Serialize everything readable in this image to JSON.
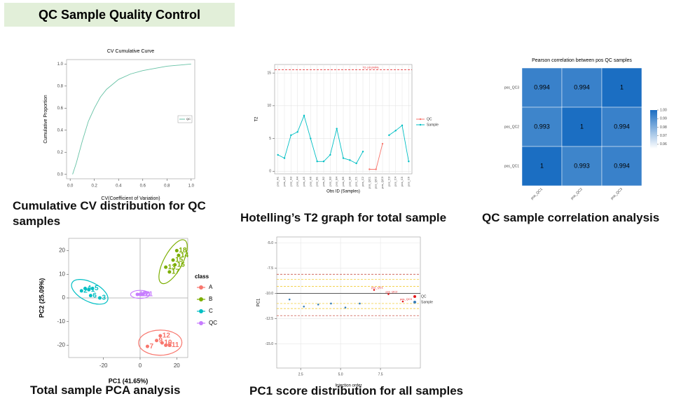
{
  "header": {
    "title": "QC Sample Quality Control"
  },
  "chart_data": [
    {
      "type": "line",
      "title": "CV Cumulative Curve",
      "caption": "Cumulative CV distribution for QC samples",
      "x_label": "CV(Coefficient of Variation)",
      "y_label": "Cumulative Proportion",
      "x": [
        0.02,
        0.05,
        0.1,
        0.15,
        0.2,
        0.25,
        0.3,
        0.4,
        0.5,
        0.6,
        0.7,
        0.8,
        0.9,
        1.0
      ],
      "series": [
        {
          "name": "QC",
          "color": "#66c2a5",
          "values": [
            0,
            0.1,
            0.3,
            0.48,
            0.6,
            0.7,
            0.77,
            0.86,
            0.91,
            0.94,
            0.96,
            0.98,
            0.99,
            1.0
          ]
        }
      ],
      "xlim": [
        -0.03,
        1.03
      ],
      "ylim": [
        -0.04,
        1.04
      ],
      "xticks": [
        {
          "value": 0,
          "label": "0.0"
        },
        0.2,
        0.4,
        0.6,
        0.8,
        {
          "value": 1,
          "label": "1.0"
        }
      ],
      "yticks": [
        {
          "value": 0,
          "label": "0.0"
        },
        0.2,
        0.4,
        0.6,
        0.8,
        {
          "value": 1,
          "label": "1.0"
        }
      ],
      "grid": false,
      "legend": "right"
    },
    {
      "type": "line",
      "caption": "Hotelling’s T2 graph for total sample",
      "x_label": "Obs ID (Samples)",
      "y_label": "T2",
      "categories": [
        "pos_A1",
        "pos_A2",
        "pos_A3",
        "pos_A4",
        "pos_A5",
        "pos_A6",
        "pos_B1",
        "pos_B2",
        "pos_B3",
        "pos_B4",
        "pos_B5",
        "pos_B6",
        "pos_C1",
        "pos_C2",
        "pos_QC1",
        "pos_QC2",
        "pos_QC3",
        "pos_C3",
        "pos_C4",
        "pos_C5",
        "pos_C6"
      ],
      "series": [
        {
          "name": "QC",
          "color": "#f8766d",
          "values": [
            null,
            null,
            null,
            null,
            null,
            null,
            null,
            null,
            null,
            null,
            null,
            null,
            null,
            null,
            0.3,
            0.3,
            4.2,
            null,
            null,
            null,
            null
          ]
        },
        {
          "name": "Sample",
          "color": "#00bfc4",
          "values": [
            2.5,
            2,
            5.5,
            6,
            8.5,
            5,
            1.5,
            1.5,
            2.5,
            6.5,
            2,
            1.7,
            1.2,
            3,
            null,
            null,
            null,
            5.5,
            6.2,
            7,
            1.5
          ]
        }
      ],
      "ylim": [
        -0.4,
        16.3
      ],
      "yticks": [
        0,
        5,
        10,
        15
      ],
      "critical_line": {
        "value": 15.5,
        "label": "T2 crit (99%)",
        "color": "#e41a1c"
      },
      "grid": true,
      "legend": "right"
    },
    {
      "type": "heatmap",
      "title": "Pearson correlation between pos QC samples",
      "caption": "QC sample correlation analysis",
      "x_categories": [
        "pos_QC1",
        "pos_QC2",
        "pos_QC3"
      ],
      "y_categories": [
        "pos_QC3",
        "pos_QC2",
        "pos_QC1"
      ],
      "values": [
        [
          0.994,
          0.994,
          1
        ],
        [
          0.993,
          1,
          0.994
        ],
        [
          1,
          0.993,
          0.994
        ]
      ],
      "zlim": [
        0.955,
        1.0
      ],
      "color_low": "#ffffff",
      "color_high": "#1b6ec2",
      "colorbar_ticks": [
        {
          "value": 1,
          "label": "1.00"
        },
        0.99,
        0.98,
        0.97,
        0.96
      ]
    },
    {
      "type": "scatter",
      "caption": "Total sample PCA analysis",
      "x_label": "PC1 (41.65%)",
      "y_label": "PC2 (25.09%)",
      "legend_title": "class",
      "series": [
        {
          "name": "A",
          "color": "#f8766d",
          "x": [
            11,
            12,
            9,
            14,
            16,
            4
          ],
          "y": [
            -16,
            -19,
            -18,
            -20,
            -20,
            -20.5
          ],
          "labels": [
            "12",
            "10",
            "9",
            "8",
            "11",
            "7"
          ]
        },
        {
          "name": "B",
          "color": "#7cae00",
          "x": [
            20,
            21,
            18,
            19,
            16,
            14
          ],
          "y": [
            20,
            18,
            16,
            14,
            11,
            13
          ],
          "labels": [
            "18",
            "14",
            "15",
            "16",
            "17",
            "13"
          ]
        },
        {
          "name": "C",
          "color": "#00bfc4",
          "x": [
            -30,
            -28,
            -26,
            -22,
            -27,
            -32
          ],
          "y": [
            4,
            3.5,
            4,
            0,
            1,
            3
          ],
          "labels": [
            "4",
            "1",
            "5",
            "3",
            "6",
            "2"
          ]
        },
        {
          "name": "QC",
          "color": "#c77cff",
          "x": [
            -1.5,
            0,
            1.5
          ],
          "y": [
            1.5,
            1.5,
            1.5
          ],
          "labels": [
            "19",
            "20",
            "21"
          ]
        }
      ],
      "xlim": [
        -39,
        26
      ],
      "ylim": [
        -25.2,
        25.2
      ],
      "xticks": [
        -20,
        0,
        20
      ],
      "yticks": [
        -20,
        -10,
        0,
        10,
        20
      ],
      "grid": false,
      "origin_lines": true,
      "ellipses": true,
      "legend": "right"
    },
    {
      "type": "scatter",
      "caption": "PC1 score distribution for all samples",
      "x_label": "Injection order",
      "y_label": "PC1",
      "series": [
        {
          "name": "QC",
          "color": "#e41a1c",
          "x": [
            7.1,
            8.0,
            8.9
          ],
          "y": [
            -9.65,
            -10.07,
            -10.8
          ],
          "labels": [
            "pos_QC1",
            "pos_QC2",
            "pos_QC3"
          ]
        },
        {
          "name": "Sample",
          "color": "#377eb8",
          "x": [
            1.8,
            2.7,
            3.6,
            4.4,
            5.3,
            6.2
          ],
          "y": [
            -10.6,
            -11.3,
            -11.1,
            -11.0,
            -11.4,
            -11.0
          ]
        }
      ],
      "hlines": [
        {
          "value": -10,
          "color": "#000000",
          "dashed": false
        },
        {
          "value": -8.1,
          "color": "#c0392b",
          "dashed": true
        },
        {
          "value": -12.2,
          "color": "#c0392b",
          "dashed": true
        },
        {
          "value": -8.6,
          "color": "#f0c419",
          "dashed": true
        },
        {
          "value": -9.3,
          "color": "#f0c419",
          "dashed": true
        },
        {
          "value": -11.0,
          "color": "#f0c419",
          "dashed": true
        },
        {
          "value": -11.5,
          "color": "#f0c419",
          "dashed": true
        }
      ],
      "xlim": [
        1,
        10
      ],
      "ylim": [
        -17.4,
        -4.4
      ],
      "xticks": [
        2.5,
        {
          "value": 5,
          "label": "5.0"
        },
        7.5
      ],
      "yticks": [
        {
          "value": -5,
          "label": "-5.0"
        },
        -7.5,
        {
          "value": -10,
          "label": "-10.0"
        },
        -12.5,
        {
          "value": -15,
          "label": "-15.0"
        }
      ],
      "grid": true,
      "legend": "right"
    }
  ]
}
